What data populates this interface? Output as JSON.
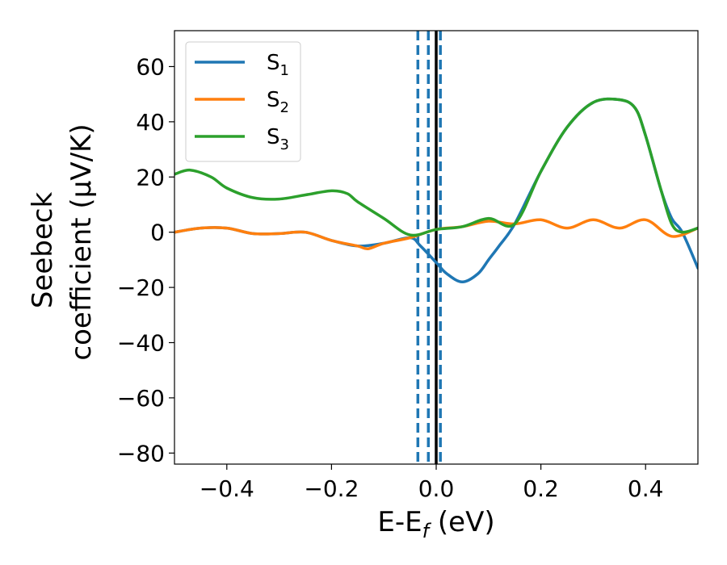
{
  "chart_data": {
    "type": "line",
    "xlabel": {
      "main": "E-E",
      "sub": "f",
      "unit": " (eV)"
    },
    "ylabel": {
      "line1": "Seebeck",
      "line2": "coefficient  (μV/K)"
    },
    "xlim": [
      -0.5,
      0.5
    ],
    "ylim": [
      -84,
      73
    ],
    "xticks": [
      -0.4,
      -0.2,
      0.0,
      0.2,
      0.4
    ],
    "xtick_labels": [
      "−0.4",
      "−0.2",
      "0.0",
      "0.2",
      "0.4"
    ],
    "yticks": [
      -80,
      -60,
      -40,
      -20,
      0,
      20,
      40,
      60
    ],
    "ytick_labels": [
      "−80",
      "−60",
      "−40",
      "−20",
      "0",
      "20",
      "40",
      "60"
    ],
    "grid": false,
    "legend_position": "top-left",
    "series": [
      {
        "name": "S",
        "sub": "1",
        "color": "#1f77b4",
        "x": [
          -0.5,
          -0.45,
          -0.4,
          -0.35,
          -0.3,
          -0.25,
          -0.2,
          -0.15,
          -0.1,
          -0.05,
          -0.03,
          0.0,
          0.02,
          0.05,
          0.08,
          0.1,
          0.12,
          0.15,
          0.2,
          0.25,
          0.3,
          0.35,
          0.38,
          0.4,
          0.43,
          0.45,
          0.47,
          0.5
        ],
        "y": [
          0,
          1.5,
          1.5,
          -0.5,
          -0.5,
          0,
          -3,
          -5,
          -4,
          -2,
          -5,
          -11,
          -15,
          -18,
          -15,
          -10,
          -5,
          3,
          22,
          38,
          47,
          48,
          45,
          35,
          15,
          5,
          0,
          -13
        ]
      },
      {
        "name": "S",
        "sub": "2",
        "color": "#ff7f0e",
        "x": [
          -0.5,
          -0.45,
          -0.4,
          -0.35,
          -0.3,
          -0.25,
          -0.2,
          -0.15,
          -0.13,
          -0.1,
          -0.05,
          0.0,
          0.05,
          0.1,
          0.15,
          0.2,
          0.25,
          0.3,
          0.35,
          0.4,
          0.45,
          0.5
        ],
        "y": [
          0,
          1.5,
          1.5,
          -0.5,
          -0.5,
          0,
          -3,
          -5,
          -6,
          -4,
          -2,
          1,
          2,
          4,
          3,
          4.5,
          1.5,
          4.5,
          1.5,
          4.5,
          -1.5,
          1.5
        ]
      },
      {
        "name": "S",
        "sub": "3",
        "color": "#2ca02c",
        "x": [
          -0.5,
          -0.47,
          -0.43,
          -0.4,
          -0.35,
          -0.3,
          -0.25,
          -0.2,
          -0.17,
          -0.15,
          -0.1,
          -0.05,
          0.0,
          0.05,
          0.1,
          0.15,
          0.2,
          0.25,
          0.3,
          0.35,
          0.38,
          0.4,
          0.43,
          0.45,
          0.47,
          0.5
        ],
        "y": [
          21,
          22.5,
          20,
          16,
          12.5,
          12,
          13.5,
          15,
          14,
          11,
          5,
          -1,
          1,
          2,
          5,
          3,
          22,
          38,
          47,
          48,
          45,
          35,
          15,
          3,
          0,
          1.5
        ]
      }
    ],
    "reference_lines": [
      {
        "x": -0.035,
        "color": "#1f77b4",
        "style": "dashed"
      },
      {
        "x": -0.015,
        "color": "#1f77b4",
        "style": "dashed"
      },
      {
        "x": 0.008,
        "color": "#1f77b4",
        "style": "dashed"
      },
      {
        "x": 0.0,
        "color": "#000000",
        "style": "solid"
      }
    ]
  }
}
